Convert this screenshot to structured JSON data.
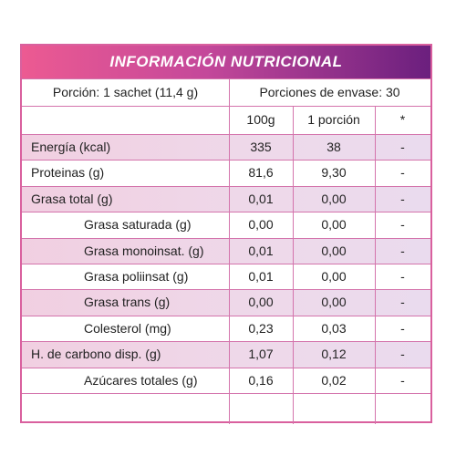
{
  "header": {
    "title": "INFORMACIÓN NUTRICIONAL"
  },
  "serving": {
    "portion": "Porción: 1 sachet (11,4 g)",
    "servings": "Porciones de envase: 30"
  },
  "table": {
    "columns": [
      "100g",
      "1 porción",
      "*"
    ],
    "rows": [
      {
        "label": "Energía (kcal)",
        "values": [
          "335",
          "38",
          "-"
        ]
      },
      {
        "label": "Proteinas (g)",
        "values": [
          "81,6",
          "9,30",
          "-"
        ]
      },
      {
        "label": "Grasa total (g)",
        "values": [
          "0,01",
          "0,00",
          "-"
        ]
      },
      {
        "label": "Grasa saturada (g)",
        "values": [
          "0,00",
          "0,00",
          "-"
        ]
      },
      {
        "label": "Grasa monoinsat. (g)",
        "values": [
          "0,01",
          "0,00",
          "-"
        ]
      },
      {
        "label": "Grasa poliinsat (g)",
        "values": [
          "0,01",
          "0,00",
          "-"
        ]
      },
      {
        "label": "Grasa trans (g)",
        "values": [
          "0,00",
          "0,00",
          "-"
        ]
      },
      {
        "label": "Colesterol (mg)",
        "values": [
          "0,23",
          "0,03",
          "-"
        ]
      },
      {
        "label": "H. de carbono disp. (g)",
        "values": [
          "1,07",
          "0,12",
          "-"
        ]
      },
      {
        "label": "Azúcares totales (g)",
        "values": [
          "0,16",
          "0,02",
          "-"
        ]
      }
    ]
  }
}
